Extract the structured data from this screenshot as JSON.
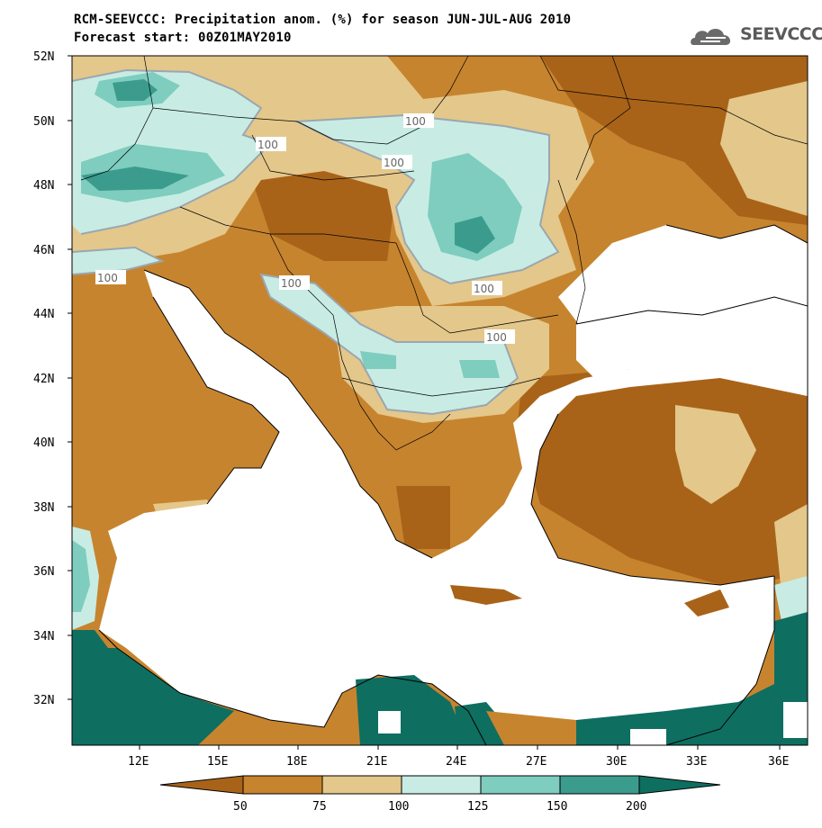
{
  "header": {
    "title": "RCM-SEEVCCC: Precipitation anom. (%) for season JUN-JUL-AUG 2010",
    "subtitle": "Forecast start: 00Z01MAY2010"
  },
  "logo": {
    "text": "SEEVCCC",
    "icon": "cloud-logo-icon"
  },
  "axes": {
    "lat_labels": [
      "52N",
      "50N",
      "48N",
      "46N",
      "44N",
      "42N",
      "40N",
      "38N",
      "36N",
      "34N",
      "32N"
    ],
    "lon_labels": [
      "12E",
      "15E",
      "18E",
      "21E",
      "24E",
      "27E",
      "30E",
      "33E",
      "36E"
    ]
  },
  "contour_labels": [
    "100",
    "100",
    "100",
    "100",
    "100",
    "100",
    "100"
  ],
  "colorbar": {
    "labels": [
      "50",
      "75",
      "100",
      "125",
      "150",
      "200"
    ],
    "colors": [
      "#a86319",
      "#c7842e",
      "#e4c78a",
      "#c8ece4",
      "#7ecdbf",
      "#3b9c8d",
      "#0e6e60"
    ]
  },
  "map_colors": {
    "below_50": "#a86319",
    "c50_75": "#c7842e",
    "c75_100": "#e4c78a",
    "c100_125": "#c8ece4",
    "c125_150": "#7ecdbf",
    "c150_200": "#3b9c8d",
    "above_200": "#0e6e60",
    "sea": "#ffffff"
  }
}
